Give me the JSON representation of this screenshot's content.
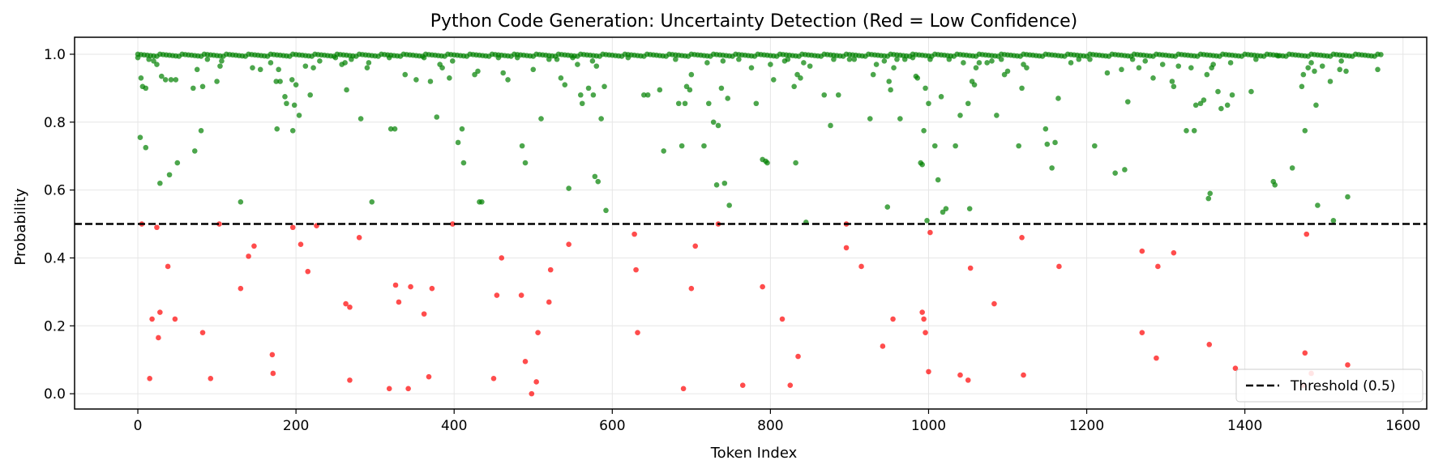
{
  "chart_data": {
    "type": "scatter",
    "title": "Python Code Generation: Uncertainty Detection (Red = Low Confidence)",
    "xlabel": "Token Index",
    "ylabel": "Probability",
    "xlim": [
      -80,
      1630
    ],
    "ylim": [
      -0.045,
      1.05
    ],
    "xticks": [
      0,
      200,
      400,
      600,
      800,
      1000,
      1200,
      1400,
      1600
    ],
    "yticks": [
      0.0,
      0.2,
      0.4,
      0.6,
      0.8,
      1.0
    ],
    "xtick_labels": [
      "0",
      "200",
      "400",
      "600",
      "800",
      "1000",
      "1200",
      "1400",
      "1600"
    ],
    "ytick_labels": [
      "0.0",
      "0.2",
      "0.4",
      "0.6",
      "0.8",
      "1.0"
    ],
    "grid": true,
    "legend_position": "bottom-right",
    "threshold": {
      "label": "Threshold (0.5)",
      "value": 0.5,
      "color": "#000000"
    },
    "colors": {
      "high_confidence": "#008000",
      "low_confidence": "#ff0000"
    },
    "high_confidence_band": {
      "x_range": [
        0,
        1575
      ],
      "y": 1.0
    },
    "high_points": [
      [
        0,
        0.99
      ],
      [
        4,
        0.93
      ],
      [
        6,
        0.905
      ],
      [
        10,
        0.9
      ],
      [
        14,
        0.985
      ],
      [
        20,
        0.98
      ],
      [
        24,
        0.97
      ],
      [
        30,
        0.935
      ],
      [
        35,
        0.925
      ],
      [
        42,
        0.925
      ],
      [
        48,
        0.925
      ],
      [
        3,
        0.755
      ],
      [
        10,
        0.725
      ],
      [
        28,
        0.62
      ],
      [
        40,
        0.645
      ],
      [
        50,
        0.68
      ],
      [
        70,
        0.9
      ],
      [
        75,
        0.955
      ],
      [
        82,
        0.905
      ],
      [
        88,
        0.985
      ],
      [
        100,
        0.92
      ],
      [
        104,
        0.965
      ],
      [
        106,
        0.98
      ],
      [
        72,
        0.715
      ],
      [
        80,
        0.775
      ],
      [
        130,
        0.565
      ],
      [
        145,
        0.96
      ],
      [
        155,
        0.955
      ],
      [
        168,
        0.975
      ],
      [
        175,
        0.92
      ],
      [
        178,
        0.955
      ],
      [
        180,
        0.92
      ],
      [
        186,
        0.875
      ],
      [
        188,
        0.855
      ],
      [
        195,
        0.925
      ],
      [
        198,
        0.85
      ],
      [
        200,
        0.91
      ],
      [
        204,
        0.82
      ],
      [
        212,
        0.965
      ],
      [
        218,
        0.88
      ],
      [
        222,
        0.96
      ],
      [
        176,
        0.78
      ],
      [
        196,
        0.775
      ],
      [
        230,
        0.98
      ],
      [
        250,
        0.99
      ],
      [
        258,
        0.97
      ],
      [
        262,
        0.975
      ],
      [
        264,
        0.895
      ],
      [
        270,
        0.985
      ],
      [
        282,
        0.81
      ],
      [
        290,
        0.96
      ],
      [
        292,
        0.975
      ],
      [
        296,
        0.565
      ],
      [
        318,
        0.99
      ],
      [
        320,
        0.78
      ],
      [
        325,
        0.78
      ],
      [
        338,
        0.94
      ],
      [
        352,
        0.925
      ],
      [
        362,
        0.99
      ],
      [
        370,
        0.92
      ],
      [
        378,
        0.815
      ],
      [
        382,
        0.97
      ],
      [
        385,
        0.96
      ],
      [
        394,
        0.93
      ],
      [
        398,
        0.98
      ],
      [
        405,
        0.74
      ],
      [
        410,
        0.78
      ],
      [
        412,
        0.68
      ],
      [
        426,
        0.94
      ],
      [
        430,
        0.95
      ],
      [
        432,
        0.565
      ],
      [
        435,
        0.565
      ],
      [
        456,
        0.99
      ],
      [
        462,
        0.945
      ],
      [
        468,
        0.925
      ],
      [
        480,
        0.99
      ],
      [
        486,
        0.73
      ],
      [
        490,
        0.68
      ],
      [
        500,
        0.955
      ],
      [
        510,
        0.81
      ],
      [
        520,
        0.985
      ],
      [
        530,
        0.985
      ],
      [
        535,
        0.93
      ],
      [
        540,
        0.91
      ],
      [
        545,
        0.605
      ],
      [
        550,
        0.99
      ],
      [
        556,
        0.97
      ],
      [
        560,
        0.88
      ],
      [
        562,
        0.855
      ],
      [
        570,
        0.9
      ],
      [
        575,
        0.98
      ],
      [
        576,
        0.88
      ],
      [
        578,
        0.64
      ],
      [
        580,
        0.965
      ],
      [
        582,
        0.625
      ],
      [
        586,
        0.81
      ],
      [
        590,
        0.905
      ],
      [
        592,
        0.54
      ],
      [
        620,
        0.99
      ],
      [
        640,
        0.88
      ],
      [
        645,
        0.88
      ],
      [
        660,
        0.895
      ],
      [
        665,
        0.715
      ],
      [
        680,
        0.985
      ],
      [
        684,
        0.855
      ],
      [
        688,
        0.73
      ],
      [
        692,
        0.855
      ],
      [
        694,
        0.905
      ],
      [
        698,
        0.895
      ],
      [
        700,
        0.94
      ],
      [
        716,
        0.73
      ],
      [
        720,
        0.975
      ],
      [
        722,
        0.855
      ],
      [
        728,
        0.8
      ],
      [
        732,
        0.615
      ],
      [
        734,
        0.79
      ],
      [
        738,
        0.9
      ],
      [
        740,
        0.98
      ],
      [
        742,
        0.62
      ],
      [
        746,
        0.87
      ],
      [
        748,
        0.555
      ],
      [
        760,
        0.985
      ],
      [
        776,
        0.96
      ],
      [
        782,
        0.855
      ],
      [
        790,
        0.69
      ],
      [
        794,
        0.685
      ],
      [
        796,
        0.68
      ],
      [
        800,
        0.97
      ],
      [
        804,
        0.925
      ],
      [
        818,
        0.98
      ],
      [
        822,
        0.985
      ],
      [
        830,
        0.905
      ],
      [
        832,
        0.68
      ],
      [
        834,
        0.94
      ],
      [
        838,
        0.93
      ],
      [
        842,
        0.975
      ],
      [
        845,
        0.505
      ],
      [
        850,
        0.965
      ],
      [
        868,
        0.88
      ],
      [
        876,
        0.79
      ],
      [
        880,
        0.985
      ],
      [
        886,
        0.88
      ],
      [
        900,
        0.985
      ],
      [
        906,
        0.985
      ],
      [
        926,
        0.81
      ],
      [
        930,
        0.94
      ],
      [
        934,
        0.97
      ],
      [
        944,
        0.98
      ],
      [
        948,
        0.55
      ],
      [
        950,
        0.92
      ],
      [
        952,
        0.895
      ],
      [
        956,
        0.96
      ],
      [
        960,
        0.985
      ],
      [
        964,
        0.81
      ],
      [
        970,
        0.985
      ],
      [
        980,
        0.99
      ],
      [
        984,
        0.935
      ],
      [
        986,
        0.93
      ],
      [
        990,
        0.68
      ],
      [
        992,
        0.675
      ],
      [
        994,
        0.775
      ],
      [
        996,
        0.9
      ],
      [
        998,
        0.51
      ],
      [
        1000,
        0.855
      ],
      [
        1002,
        0.985
      ],
      [
        1008,
        0.73
      ],
      [
        1012,
        0.63
      ],
      [
        1016,
        0.875
      ],
      [
        1018,
        0.535
      ],
      [
        1022,
        0.545
      ],
      [
        1026,
        0.985
      ],
      [
        1034,
        0.73
      ],
      [
        1040,
        0.82
      ],
      [
        1044,
        0.975
      ],
      [
        1050,
        0.855
      ],
      [
        1052,
        0.545
      ],
      [
        1055,
        0.92
      ],
      [
        1058,
        0.91
      ],
      [
        1060,
        0.96
      ],
      [
        1064,
        0.975
      ],
      [
        1074,
        0.975
      ],
      [
        1080,
        0.98
      ],
      [
        1086,
        0.82
      ],
      [
        1092,
        0.985
      ],
      [
        1096,
        0.94
      ],
      [
        1100,
        0.95
      ],
      [
        1114,
        0.73
      ],
      [
        1118,
        0.9
      ],
      [
        1120,
        0.97
      ],
      [
        1124,
        0.96
      ],
      [
        1148,
        0.78
      ],
      [
        1150,
        0.735
      ],
      [
        1156,
        0.665
      ],
      [
        1160,
        0.74
      ],
      [
        1164,
        0.87
      ],
      [
        1180,
        0.975
      ],
      [
        1190,
        0.985
      ],
      [
        1204,
        0.985
      ],
      [
        1210,
        0.73
      ],
      [
        1226,
        0.945
      ],
      [
        1236,
        0.65
      ],
      [
        1244,
        0.955
      ],
      [
        1248,
        0.66
      ],
      [
        1252,
        0.86
      ],
      [
        1258,
        0.985
      ],
      [
        1266,
        0.96
      ],
      [
        1274,
        0.98
      ],
      [
        1284,
        0.93
      ],
      [
        1296,
        0.97
      ],
      [
        1308,
        0.92
      ],
      [
        1310,
        0.905
      ],
      [
        1316,
        0.965
      ],
      [
        1326,
        0.775
      ],
      [
        1332,
        0.96
      ],
      [
        1336,
        0.775
      ],
      [
        1338,
        0.85
      ],
      [
        1344,
        0.855
      ],
      [
        1348,
        0.865
      ],
      [
        1352,
        0.94
      ],
      [
        1354,
        0.575
      ],
      [
        1356,
        0.59
      ],
      [
        1358,
        0.96
      ],
      [
        1360,
        0.97
      ],
      [
        1366,
        0.89
      ],
      [
        1370,
        0.84
      ],
      [
        1378,
        0.85
      ],
      [
        1382,
        0.975
      ],
      [
        1384,
        0.88
      ],
      [
        1408,
        0.89
      ],
      [
        1414,
        0.985
      ],
      [
        1436,
        0.625
      ],
      [
        1438,
        0.615
      ],
      [
        1442,
        0.995
      ],
      [
        1460,
        0.665
      ],
      [
        1472,
        0.905
      ],
      [
        1474,
        0.94
      ],
      [
        1476,
        0.775
      ],
      [
        1480,
        0.96
      ],
      [
        1484,
        0.975
      ],
      [
        1488,
        0.95
      ],
      [
        1490,
        0.85
      ],
      [
        1492,
        0.555
      ],
      [
        1498,
        0.965
      ],
      [
        1508,
        0.92
      ],
      [
        1512,
        0.51
      ],
      [
        1520,
        0.955
      ],
      [
        1522,
        0.98
      ],
      [
        1528,
        0.95
      ],
      [
        1530,
        0.58
      ],
      [
        1568,
        0.955
      ]
    ],
    "low_points": [
      [
        5,
        0.5
      ],
      [
        15,
        0.045
      ],
      [
        18,
        0.22
      ],
      [
        24,
        0.49
      ],
      [
        26,
        0.165
      ],
      [
        28,
        0.24
      ],
      [
        38,
        0.375
      ],
      [
        47,
        0.22
      ],
      [
        82,
        0.18
      ],
      [
        92,
        0.045
      ],
      [
        103,
        0.5
      ],
      [
        130,
        0.31
      ],
      [
        140,
        0.405
      ],
      [
        147,
        0.435
      ],
      [
        170,
        0.115
      ],
      [
        171,
        0.06
      ],
      [
        196,
        0.49
      ],
      [
        206,
        0.44
      ],
      [
        215,
        0.36
      ],
      [
        226,
        0.495
      ],
      [
        263,
        0.265
      ],
      [
        268,
        0.255
      ],
      [
        268,
        0.04
      ],
      [
        280,
        0.46
      ],
      [
        318,
        0.015
      ],
      [
        326,
        0.32
      ],
      [
        330,
        0.27
      ],
      [
        342,
        0.015
      ],
      [
        345,
        0.315
      ],
      [
        362,
        0.235
      ],
      [
        368,
        0.05
      ],
      [
        372,
        0.31
      ],
      [
        398,
        0.5
      ],
      [
        450,
        0.045
      ],
      [
        454,
        0.29
      ],
      [
        460,
        0.4
      ],
      [
        485,
        0.29
      ],
      [
        490,
        0.095
      ],
      [
        498,
        0.0
      ],
      [
        504,
        0.035
      ],
      [
        506,
        0.18
      ],
      [
        520,
        0.27
      ],
      [
        522,
        0.365
      ],
      [
        545,
        0.44
      ],
      [
        628,
        0.47
      ],
      [
        630,
        0.365
      ],
      [
        632,
        0.18
      ],
      [
        690,
        0.015
      ],
      [
        700,
        0.31
      ],
      [
        705,
        0.435
      ],
      [
        734,
        0.5
      ],
      [
        765,
        0.025
      ],
      [
        790,
        0.315
      ],
      [
        815,
        0.22
      ],
      [
        825,
        0.025
      ],
      [
        835,
        0.11
      ],
      [
        896,
        0.5
      ],
      [
        896,
        0.43
      ],
      [
        915,
        0.375
      ],
      [
        942,
        0.14
      ],
      [
        955,
        0.22
      ],
      [
        992,
        0.24
      ],
      [
        994,
        0.22
      ],
      [
        996,
        0.18
      ],
      [
        1000,
        0.065
      ],
      [
        1002,
        0.475
      ],
      [
        1040,
        0.055
      ],
      [
        1050,
        0.04
      ],
      [
        1053,
        0.37
      ],
      [
        1083,
        0.265
      ],
      [
        1118,
        0.46
      ],
      [
        1120,
        0.055
      ],
      [
        1165,
        0.375
      ],
      [
        1270,
        0.18
      ],
      [
        1270,
        0.42
      ],
      [
        1288,
        0.105
      ],
      [
        1290,
        0.375
      ],
      [
        1310,
        0.415
      ],
      [
        1355,
        0.145
      ],
      [
        1388,
        0.075
      ],
      [
        1474,
        0.025
      ],
      [
        1476,
        0.12
      ],
      [
        1478,
        0.47
      ],
      [
        1484,
        0.06
      ],
      [
        1530,
        0.085
      ]
    ]
  }
}
